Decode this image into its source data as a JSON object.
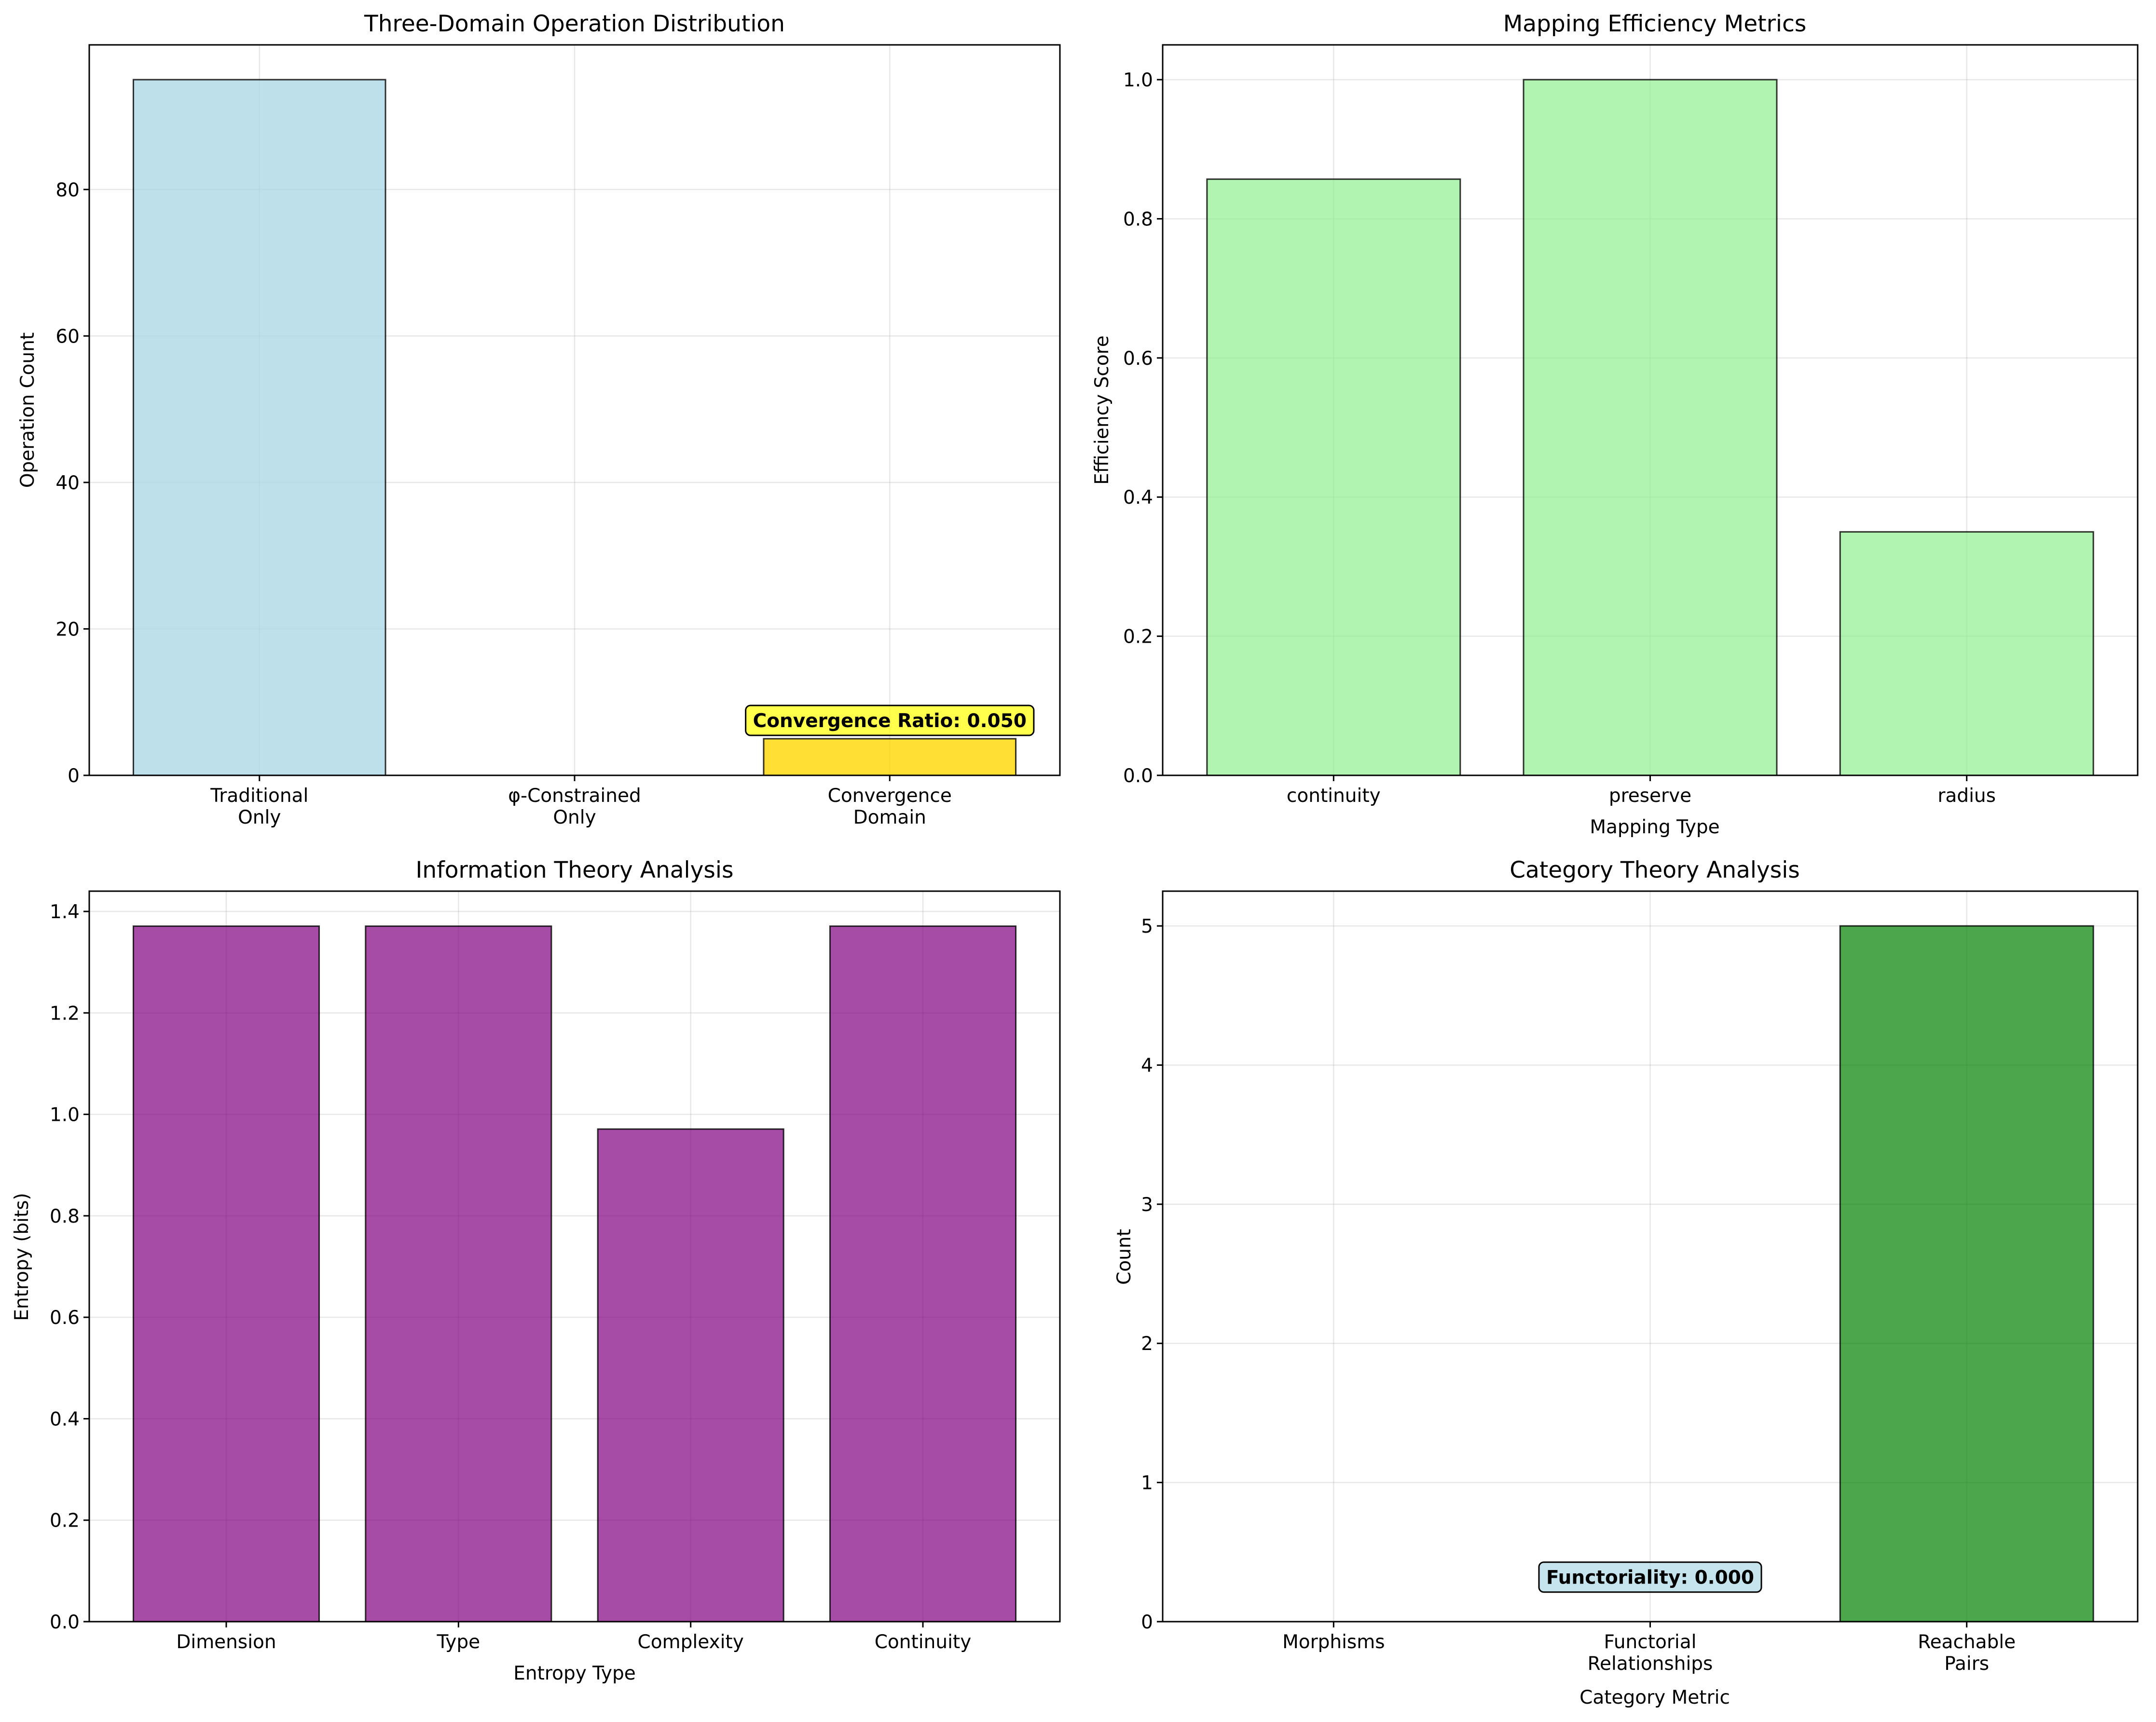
{
  "chart_data": [
    {
      "type": "bar",
      "title": "Three-Domain Operation Distribution",
      "xlabel": "",
      "ylabel": "Operation Count",
      "categories": [
        [
          "Traditional",
          "Only"
        ],
        [
          "φ-Constrained",
          "Only"
        ],
        [
          "Convergence",
          "Domain"
        ]
      ],
      "values": [
        95,
        0,
        5
      ],
      "colors": [
        "#add8e6",
        "#ffc0cb",
        "#ffd700"
      ],
      "alpha": 0.8,
      "ylim": [
        0,
        99.75
      ],
      "yticks": [
        0,
        20,
        40,
        60,
        80
      ],
      "grid": true,
      "annotation": {
        "text": "Convergence Ratio: 0.050",
        "x": 2,
        "y": 7.5,
        "fill": "#ffff00",
        "alpha": 0.7
      }
    },
    {
      "type": "bar",
      "title": "Mapping Efficiency Metrics",
      "xlabel": "Mapping Type",
      "ylabel": "Efficiency Score",
      "categories": [
        [
          "continuity"
        ],
        [
          "preserve"
        ],
        [
          "radius"
        ]
      ],
      "values": [
        0.857,
        1.0,
        0.35
      ],
      "colors": [
        "#90ee90",
        "#90ee90",
        "#90ee90"
      ],
      "alpha": 0.7,
      "ylim": [
        0,
        1.05
      ],
      "yticks": [
        0.0,
        0.2,
        0.4,
        0.6,
        0.8,
        1.0
      ],
      "grid": true
    },
    {
      "type": "bar",
      "title": "Information Theory Analysis",
      "xlabel": "Entropy Type",
      "ylabel": "Entropy (bits)",
      "categories": [
        [
          "Dimension"
        ],
        [
          "Type"
        ],
        [
          "Complexity"
        ],
        [
          "Continuity"
        ]
      ],
      "values": [
        1.371,
        1.371,
        0.971,
        1.371
      ],
      "colors": [
        "#800080",
        "#800080",
        "#800080",
        "#800080"
      ],
      "alpha": 0.7,
      "ylim": [
        0,
        1.44
      ],
      "yticks": [
        0.0,
        0.2,
        0.4,
        0.6,
        0.8,
        1.0,
        1.2,
        1.4
      ],
      "grid": true
    },
    {
      "type": "bar",
      "title": "Category Theory Analysis",
      "xlabel": "Category Metric",
      "ylabel": "Count",
      "categories": [
        [
          "Morphisms"
        ],
        [
          "Functorial",
          "Relationships"
        ],
        [
          "Reachable",
          "Pairs"
        ]
      ],
      "values": [
        0,
        0,
        5
      ],
      "colors": [
        "#008000",
        "#008000",
        "#008000"
      ],
      "alpha": 0.7,
      "ylim": [
        0,
        5.25
      ],
      "yticks": [
        0,
        1,
        2,
        3,
        4,
        5
      ],
      "grid": true,
      "annotation": {
        "text": "Functoriality: 0.000",
        "x": 1,
        "y": 0.32,
        "fill": "#add8e6",
        "alpha": 0.7
      }
    }
  ]
}
